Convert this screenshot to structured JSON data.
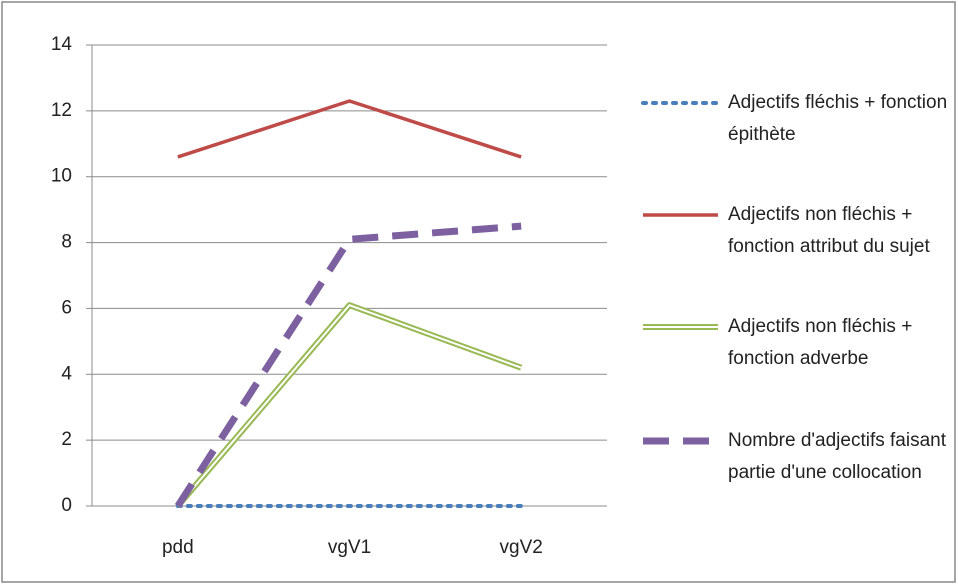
{
  "chart_data": {
    "type": "line",
    "categories": [
      "pdd",
      "vgV1",
      "vgV2"
    ],
    "ylim": [
      0,
      14
    ],
    "yticks": [
      0,
      2,
      4,
      6,
      8,
      10,
      12,
      14
    ],
    "grid": true,
    "legend": "right",
    "series": [
      {
        "name": "Adjectifs fléchis + fonction épithète",
        "color": "#4a7ebb",
        "style": "dotted",
        "values": [
          0,
          0,
          0
        ]
      },
      {
        "name": "Adjectifs non fléchis + fonction attribut du sujet",
        "color": "#be4b48",
        "style": "solid",
        "values": [
          10.6,
          12.3,
          10.6
        ]
      },
      {
        "name": "Adjectifs non fléchis + fonction adverbe",
        "color": "#98b954",
        "style": "double",
        "values": [
          0,
          6.1,
          4.2
        ]
      },
      {
        "name": "Nombre d'adjectifs faisant partie d'une collocation",
        "color": "#7d60a0",
        "style": "dashed",
        "values": [
          0,
          8.1,
          8.5
        ]
      }
    ]
  }
}
